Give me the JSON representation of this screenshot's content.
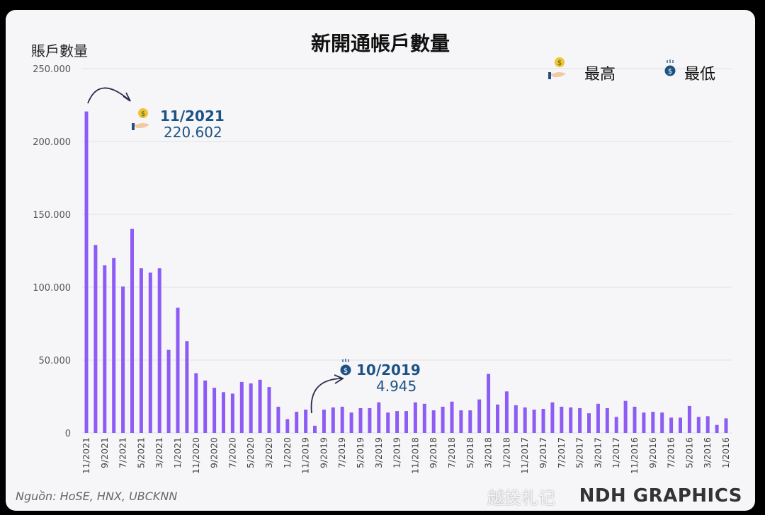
{
  "chart_data": {
    "type": "bar",
    "title": "新開通帳戶數量",
    "ylabel": "賬戶數量",
    "ylim": [
      0,
      250000
    ],
    "yticks": [
      "0",
      "50.000",
      "100.000",
      "150.000",
      "200.000",
      "250.000"
    ],
    "grid": true,
    "bar_color": "#8c5cf5",
    "categories": [
      "11/2021",
      "10/2021",
      "9/2021",
      "8/2021",
      "7/2021",
      "6/2021",
      "5/2021",
      "4/2021",
      "3/2021",
      "2/2021",
      "1/2021",
      "12/2020",
      "11/2020",
      "10/2020",
      "9/2020",
      "8/2020",
      "7/2020",
      "6/2020",
      "5/2020",
      "4/2020",
      "3/2020",
      "2/2020",
      "1/2020",
      "12/2019",
      "11/2019",
      "10/2019",
      "9/2019",
      "8/2019",
      "7/2019",
      "6/2019",
      "5/2019",
      "4/2019",
      "3/2019",
      "2/2019",
      "1/2019",
      "12/2018",
      "11/2018",
      "10/2018",
      "9/2018",
      "8/2018",
      "7/2018",
      "6/2018",
      "5/2018",
      "4/2018",
      "3/2018",
      "2/2018",
      "1/2018",
      "12/2017",
      "11/2017",
      "10/2017",
      "9/2017",
      "8/2017",
      "7/2017",
      "6/2017",
      "5/2017",
      "4/2017",
      "3/2017",
      "2/2017",
      "1/2017",
      "12/2016",
      "11/2016",
      "10/2016",
      "9/2016",
      "8/2016",
      "7/2016",
      "6/2016",
      "5/2016",
      "4/2016",
      "3/2016",
      "2/2016",
      "1/2016"
    ],
    "values": [
      220602,
      129000,
      115000,
      120000,
      100500,
      140000,
      113000,
      110000,
      113000,
      57000,
      86000,
      63000,
      41000,
      36000,
      31000,
      28000,
      27000,
      35000,
      34000,
      36500,
      31500,
      18000,
      9500,
      14500,
      16000,
      4945,
      16000,
      17500,
      18000,
      14000,
      17000,
      17000,
      21000,
      14000,
      15000,
      15000,
      21000,
      20000,
      15500,
      18000,
      21500,
      15500,
      15500,
      23000,
      40500,
      19500,
      28500,
      19000,
      17500,
      16000,
      16500,
      21000,
      18000,
      17500,
      17000,
      13500,
      20000,
      17000,
      11000,
      22000,
      18000,
      14000,
      14500,
      14000,
      10500,
      10500,
      18500,
      11000,
      11500,
      5500,
      10000
    ],
    "legend": {
      "position": "top-right",
      "items": [
        {
          "label": "最高",
          "icon": "hand-coin-icon"
        },
        {
          "label": "最低",
          "icon": "coin-icon"
        }
      ]
    },
    "annotations": [
      {
        "kind": "max",
        "date": "11/2021",
        "value": "220.602",
        "icon": "hand-coin-icon"
      },
      {
        "kind": "min",
        "date": "10/2019",
        "value": "4.945",
        "icon": "coin-icon"
      }
    ]
  },
  "footer": {
    "source": "Nguồn: HoSE, HNX, UBCKNN",
    "brand": "NDH GRAPHICS",
    "watermark": "越投札记"
  },
  "colors": {
    "annotation": "#1d5284",
    "background": "#f6f6f8"
  }
}
